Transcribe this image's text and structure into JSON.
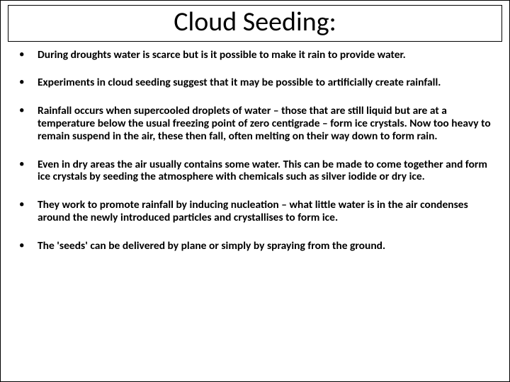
{
  "title": "Cloud Seeding:",
  "bullets": [
    "During droughts water is scarce but is it possible to make it rain to provide water.",
    "Experiments in cloud seeding suggest that it may be possible to artificially create rainfall.",
    "Rainfall occurs when supercooled droplets of water – those that are still liquid but are at a temperature below the usual freezing point of zero centigrade – form ice crystals. Now too heavy to remain suspend in the air, these then fall, often melting on their way down to form rain.",
    "Even in dry areas the air usually contains some water. This can be made to come together and form ice crystals by seeding the atmosphere with chemicals such as silver iodide or dry ice.",
    "They work to promote rainfall by inducing nucleation – what little water is in the air condenses around the newly introduced particles and crystallises to form ice.",
    "The 'seeds' can be delivered by plane or simply by spraying from the ground."
  ],
  "style": {
    "background_color": "#ffffff",
    "text_color": "#000000",
    "title_fontsize": 38,
    "body_fontsize": 15.5,
    "body_fontweight": 700,
    "title_border_color": "#000000"
  }
}
